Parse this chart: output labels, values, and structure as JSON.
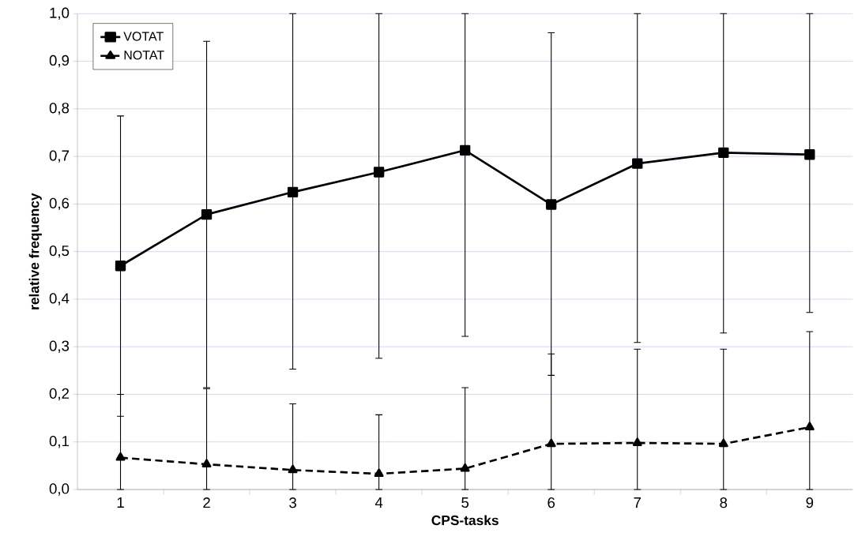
{
  "chart_data": {
    "type": "line",
    "xlabel": "CPS-tasks",
    "ylabel": "relative frequency",
    "categories": [
      "1",
      "2",
      "3",
      "4",
      "5",
      "6",
      "7",
      "8",
      "9"
    ],
    "series": [
      {
        "name": "VOTAT",
        "color": "#000000",
        "marker": "square",
        "line_style": "solid",
        "values": [
          0.47,
          0.578,
          0.625,
          0.667,
          0.713,
          0.599,
          0.685,
          0.708,
          0.704
        ],
        "errors": [
          [
            0.154,
            0.785
          ],
          [
            0.214,
            0.942
          ],
          [
            0.253,
            1.0
          ],
          [
            0.276,
            1.0
          ],
          [
            0.322,
            1.0
          ],
          [
            0.24,
            0.96
          ],
          [
            0.309,
            1.0
          ],
          [
            0.329,
            1.0
          ],
          [
            0.372,
            1.0
          ]
        ]
      },
      {
        "name": "NOTAT",
        "color": "#000000",
        "marker": "triangle",
        "line_style": "dashed",
        "values": [
          0.067,
          0.053,
          0.041,
          0.033,
          0.044,
          0.096,
          0.098,
          0.096,
          0.131
        ],
        "errors": [
          [
            0,
            0.2
          ],
          [
            0,
            0.212
          ],
          [
            0,
            0.18
          ],
          [
            0,
            0.157
          ],
          [
            0,
            0.214
          ],
          [
            0,
            0.285
          ],
          [
            0,
            0.295
          ],
          [
            0,
            0.295
          ],
          [
            0,
            0.332
          ]
        ]
      }
    ],
    "ylim": [
      0,
      1
    ],
    "yticks": [
      {
        "value": 0,
        "label": "0,0"
      },
      {
        "value": 0.1,
        "label": "0,1"
      },
      {
        "value": 0.2,
        "label": "0,2"
      },
      {
        "value": 0.3,
        "label": "0,3"
      },
      {
        "value": 0.4,
        "label": "0,4"
      },
      {
        "value": 0.5,
        "label": "0,5"
      },
      {
        "value": 0.6,
        "label": "0,6"
      },
      {
        "value": 0.7,
        "label": "0,7"
      },
      {
        "value": 0.8,
        "label": "0,8"
      },
      {
        "value": 0.9,
        "label": "0,9"
      },
      {
        "value": 1.0,
        "label": "1,0"
      }
    ],
    "grid": "y",
    "legend": "top left"
  }
}
